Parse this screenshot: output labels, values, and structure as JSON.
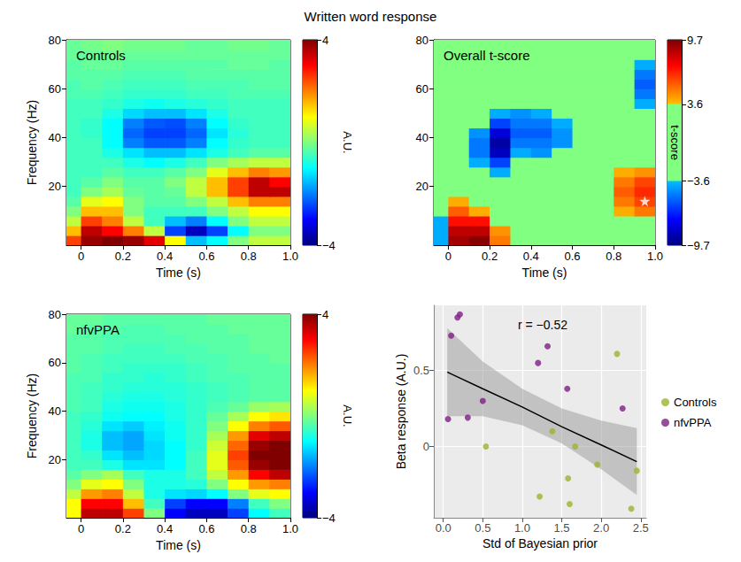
{
  "title": "Written word response",
  "chart_data": [
    {
      "type": "heatmap",
      "title": "Controls",
      "x_label": "Time (s)",
      "y_label": "Frequency (Hz)",
      "xlim": [
        -0.07,
        1.0
      ],
      "ylim": [
        -4,
        80
      ],
      "xticks": [
        0,
        0.2,
        0.4,
        0.6,
        0.8,
        {
          "value": 1,
          "label": "1.0"
        }
      ],
      "yticks": [
        20,
        40,
        60,
        80
      ],
      "x_edges": [
        -0.1,
        0,
        0.1,
        0.2,
        0.3,
        0.4,
        0.5,
        0.6,
        0.7,
        0.8,
        0.9,
        1.0
      ],
      "y_edges": [
        -4,
        0,
        4,
        8,
        12,
        16,
        20,
        24,
        28,
        32,
        36,
        40,
        44,
        48,
        52,
        56,
        60,
        64,
        68,
        72,
        76,
        80
      ],
      "cells": [
        [
          2.5,
          3.8,
          4,
          3.8,
          3.2,
          1,
          -1.5,
          -1,
          0,
          0.5,
          0.5
        ],
        [
          1.5,
          3.5,
          3,
          2,
          0.5,
          -2.5,
          -3.5,
          -2.5,
          -1,
          0,
          0
        ],
        [
          0.5,
          2.5,
          2,
          0.5,
          -0.5,
          -1.5,
          -2,
          -1,
          0,
          0.5,
          0.5
        ],
        [
          0,
          1.5,
          1.5,
          0,
          -0.5,
          -0.5,
          -0.5,
          0,
          0.5,
          1,
          1
        ],
        [
          -0.3,
          0.8,
          1,
          0,
          -0.3,
          -0.3,
          0,
          0.5,
          1.5,
          2,
          2
        ],
        [
          -0.5,
          0,
          0.3,
          -0.2,
          -0.3,
          -0.2,
          0.5,
          1.5,
          2.5,
          3.5,
          3.5
        ],
        [
          -0.5,
          -0.3,
          0,
          -0.3,
          -0.3,
          0,
          0.5,
          1.5,
          2.5,
          3.5,
          3
        ],
        [
          -0.5,
          -0.5,
          -0.3,
          -0.5,
          -0.5,
          -0.3,
          0,
          0.8,
          1.5,
          2,
          1.8
        ],
        [
          -0.5,
          -0.5,
          -0.5,
          -0.8,
          -1,
          -0.8,
          -0.5,
          0,
          0.3,
          0.5,
          0.5
        ],
        [
          -0.5,
          -0.5,
          -0.8,
          -1.2,
          -1.5,
          -1.5,
          -1.2,
          -0.8,
          -0.5,
          -0.3,
          -0.3
        ],
        [
          -0.5,
          -0.5,
          -1,
          -2,
          -2.3,
          -2.3,
          -2,
          -1,
          -0.6,
          -0.5,
          -0.5
        ],
        [
          -0.5,
          -0.6,
          -1,
          -2.2,
          -2.5,
          -2.5,
          -2.2,
          -1.2,
          -0.7,
          -0.5,
          -0.5
        ],
        [
          -0.5,
          -0.6,
          -1,
          -2,
          -2.3,
          -2.4,
          -2,
          -1,
          -0.6,
          -0.5,
          -0.5
        ],
        [
          -0.5,
          -0.5,
          -0.8,
          -1.3,
          -1.5,
          -1.5,
          -1.2,
          -0.8,
          -0.5,
          -0.5,
          -0.5
        ],
        [
          -0.5,
          -0.5,
          -0.6,
          -0.8,
          -0.9,
          -0.8,
          -0.7,
          -0.6,
          -0.5,
          -0.5,
          -0.5
        ],
        [
          -0.4,
          -0.4,
          -0.5,
          -0.6,
          -0.6,
          -0.6,
          -0.5,
          -0.5,
          -0.4,
          -0.4,
          -0.4
        ],
        [
          -0.4,
          -0.3,
          -0.4,
          -0.5,
          -0.5,
          -0.5,
          -0.4,
          -0.4,
          -0.4,
          -0.3,
          -0.3
        ],
        [
          -0.3,
          -0.3,
          -0.3,
          -0.4,
          -0.4,
          -0.4,
          -0.3,
          -0.3,
          -0.3,
          -0.3,
          -0.3
        ],
        [
          -0.3,
          -0.2,
          -0.2,
          -0.3,
          -0.3,
          -0.3,
          -0.3,
          -0.3,
          -0.2,
          -0.2,
          -0.3
        ],
        [
          -0.2,
          -0.2,
          -0.1,
          -0.2,
          -0.2,
          -0.2,
          -0.2,
          -0.2,
          -0.2,
          -0.2,
          -0.2
        ],
        [
          -0.2,
          -0.1,
          0,
          -0.1,
          -0.1,
          -0.1,
          -0.2,
          -0.2,
          -0.1,
          -0.1,
          -0.2
        ]
      ],
      "colorbar": {
        "label": "A.U.",
        "range": [
          -4,
          4
        ],
        "ticks": [
          {
            "value": -4,
            "label": "−4"
          },
          4
        ]
      }
    },
    {
      "type": "heatmap",
      "title": "Overall t-score",
      "x_label": "Time (s)",
      "xlim": [
        -0.07,
        1.0
      ],
      "ylim": [
        -4,
        80
      ],
      "xticks": [
        0,
        0.2,
        0.4,
        0.6,
        0.8,
        {
          "value": 1,
          "label": "1.0"
        }
      ],
      "yticks": [
        20,
        40,
        60,
        80
      ],
      "x_edges": [
        -0.1,
        0,
        0.1,
        0.2,
        0.3,
        0.4,
        0.5,
        0.6,
        0.7,
        0.8,
        0.9,
        1.0
      ],
      "y_edges": [
        -4,
        0,
        4,
        8,
        12,
        16,
        20,
        24,
        28,
        32,
        36,
        40,
        44,
        48,
        52,
        56,
        60,
        64,
        68,
        72,
        76,
        80
      ],
      "cells": [
        [
          -4,
          9,
          9.5,
          5,
          0,
          0,
          0,
          0,
          0,
          0,
          0
        ],
        [
          -4,
          8.5,
          8.5,
          4.5,
          0,
          0,
          0,
          0,
          0,
          0,
          0
        ],
        [
          -4,
          7,
          7,
          0,
          0,
          0,
          0,
          0,
          0,
          0,
          0
        ],
        [
          0,
          5.5,
          4,
          0,
          0,
          0,
          0,
          0,
          0,
          4,
          5
        ],
        [
          0,
          4,
          0,
          0,
          0,
          0,
          0,
          0,
          0,
          5,
          6
        ],
        [
          0,
          0,
          0,
          0,
          0,
          0,
          0,
          0,
          0,
          5.5,
          6.5
        ],
        [
          0,
          0,
          0,
          0,
          0,
          0,
          0,
          0,
          0,
          5,
          6
        ],
        [
          0,
          0,
          0,
          -4,
          0,
          0,
          0,
          0,
          0,
          4,
          4.5
        ],
        [
          0,
          0,
          -4,
          -6,
          0,
          0,
          0,
          0,
          0,
          0,
          0
        ],
        [
          0,
          0,
          -5,
          -8.5,
          -4,
          -4.5,
          0,
          0,
          0,
          0,
          0
        ],
        [
          0,
          0,
          -5,
          -9,
          -5,
          -5,
          -4.5,
          0,
          0,
          0,
          0
        ],
        [
          0,
          0,
          -4.5,
          -8,
          -5.5,
          -5.5,
          -4.5,
          0,
          0,
          0,
          0
        ],
        [
          0,
          0,
          0,
          -6,
          -5,
          -5,
          -4,
          0,
          0,
          0,
          0
        ],
        [
          0,
          0,
          0,
          -4,
          -4.5,
          -4,
          0,
          0,
          0,
          0,
          0
        ],
        [
          0,
          0,
          0,
          0,
          0,
          0,
          0,
          0,
          0,
          0,
          -4
        ],
        [
          0,
          0,
          0,
          0,
          0,
          0,
          0,
          0,
          0,
          0,
          -5
        ],
        [
          0,
          0,
          0,
          0,
          0,
          0,
          0,
          0,
          0,
          0,
          -5.5
        ],
        [
          0,
          0,
          0,
          0,
          0,
          0,
          0,
          0,
          0,
          0,
          -5
        ],
        [
          0,
          0,
          0,
          0,
          0,
          0,
          0,
          0,
          0,
          0,
          -4
        ],
        [
          0,
          0,
          0,
          0,
          0,
          0,
          0,
          0,
          0,
          0,
          0
        ],
        [
          0,
          0,
          0,
          0,
          0,
          0,
          0,
          0,
          0,
          0,
          0
        ]
      ],
      "markers": [
        {
          "x": 0.95,
          "y": 14,
          "marker": "star",
          "color": "#ffffff"
        }
      ],
      "colorbar": {
        "label": "t-score",
        "range": [
          -9.7,
          9.7
        ],
        "threshold": 3.6,
        "ticks": [
          {
            "value": -9.7,
            "label": "−9.7"
          },
          {
            "value": -3.6,
            "label": "−3.6"
          },
          3.6,
          9.7
        ]
      }
    },
    {
      "type": "heatmap",
      "title": "nfvPPA",
      "x_label": "Time (s)",
      "y_label": "Frequency (Hz)",
      "xlim": [
        -0.07,
        1.0
      ],
      "ylim": [
        -4,
        80
      ],
      "xticks": [
        0,
        0.2,
        0.4,
        0.6,
        0.8,
        {
          "value": 1,
          "label": "1.0"
        }
      ],
      "yticks": [
        20,
        40,
        60,
        80
      ],
      "x_edges": [
        -0.1,
        0,
        0.1,
        0.2,
        0.3,
        0.4,
        0.5,
        0.6,
        0.7,
        0.8,
        0.9,
        1.0
      ],
      "y_edges": [
        -4,
        0,
        4,
        8,
        12,
        16,
        20,
        24,
        28,
        32,
        36,
        40,
        44,
        48,
        52,
        56,
        60,
        64,
        68,
        72,
        76,
        80
      ],
      "cells": [
        [
          1,
          3.5,
          3.5,
          2.5,
          0,
          -3,
          -3.5,
          -3.5,
          -2.5,
          -1,
          -0.5
        ],
        [
          1,
          3,
          3,
          1.5,
          -0.5,
          -2.5,
          -3,
          -3,
          -2,
          -0.5,
          0
        ],
        [
          0.5,
          1.8,
          2,
          0.5,
          -0.8,
          -1.2,
          -1.3,
          -1,
          0,
          0.8,
          1
        ],
        [
          0,
          0.8,
          1,
          0,
          -0.8,
          -0.8,
          -0.7,
          0,
          1,
          1.8,
          2
        ],
        [
          -0.3,
          0,
          0.3,
          -0.5,
          -0.8,
          -0.8,
          -0.5,
          0.5,
          1.8,
          3,
          3.5
        ],
        [
          -0.5,
          -0.5,
          -0.8,
          -1.2,
          -1.2,
          -1,
          -0.5,
          0.8,
          2.3,
          3.8,
          4
        ],
        [
          -0.5,
          -0.6,
          -1.2,
          -1.5,
          -1.3,
          -1,
          -0.5,
          0.8,
          2.5,
          4,
          4
        ],
        [
          -0.5,
          -0.8,
          -1.5,
          -1.7,
          -1.3,
          -1,
          -0.6,
          0.6,
          2.2,
          3.8,
          4
        ],
        [
          -0.5,
          -0.8,
          -1.5,
          -1.7,
          -1.2,
          -0.9,
          -0.6,
          0.3,
          1.8,
          3.2,
          3.5
        ],
        [
          -0.5,
          -0.7,
          -1.2,
          -1.4,
          -1.1,
          -0.9,
          -0.6,
          0,
          1,
          2,
          2.3
        ],
        [
          -0.5,
          -0.6,
          -0.9,
          -1,
          -1,
          -0.8,
          -0.6,
          -0.2,
          0.3,
          1,
          1.2
        ],
        [
          -0.4,
          -0.5,
          -0.8,
          -0.9,
          -0.9,
          -0.8,
          -0.6,
          -0.4,
          -0.2,
          0.2,
          0.3
        ],
        [
          -0.4,
          -0.5,
          -0.7,
          -0.8,
          -0.8,
          -0.7,
          -0.6,
          -0.5,
          -0.4,
          -0.3,
          -0.3
        ],
        [
          -0.4,
          -0.5,
          -0.6,
          -0.7,
          -0.7,
          -0.7,
          -0.6,
          -0.5,
          -0.4,
          -0.3,
          -0.3
        ],
        [
          -0.4,
          -0.4,
          -0.6,
          -0.6,
          -0.7,
          -0.6,
          -0.5,
          -0.4,
          -0.4,
          -0.3,
          -0.3
        ],
        [
          -0.3,
          -0.4,
          -0.5,
          -0.6,
          -0.6,
          -0.6,
          -0.5,
          -0.4,
          -0.3,
          -0.3,
          -0.3
        ],
        [
          -0.3,
          -0.4,
          -0.5,
          -0.5,
          -0.5,
          -0.5,
          -0.4,
          -0.4,
          -0.3,
          -0.3,
          -0.2
        ],
        [
          -0.3,
          -0.3,
          -0.4,
          -0.5,
          -0.5,
          -0.4,
          -0.4,
          -0.3,
          -0.3,
          -0.2,
          -0.2
        ],
        [
          -0.3,
          -0.3,
          -0.4,
          -0.4,
          -0.4,
          -0.4,
          -0.3,
          -0.3,
          -0.3,
          -0.2,
          -0.2
        ],
        [
          -0.2,
          -0.3,
          -0.3,
          -0.4,
          -0.4,
          -0.3,
          -0.3,
          -0.3,
          -0.2,
          -0.2,
          -0.2
        ],
        [
          -0.2,
          -0.2,
          -0.3,
          -0.3,
          -0.3,
          -0.3,
          -0.3,
          -0.2,
          -0.2,
          -0.2,
          -0.2
        ]
      ],
      "colorbar": {
        "label": "A.U.",
        "range": [
          -4,
          4
        ],
        "ticks": [
          {
            "value": -4,
            "label": "−4"
          },
          4
        ]
      }
    },
    {
      "type": "scatter",
      "x_label": "Std of Bayesian prior",
      "y_label": "Beta response (A.U.)",
      "xlim": [
        -0.12,
        2.57
      ],
      "ylim": [
        -0.47,
        0.93
      ],
      "xticks": [
        {
          "value": 0,
          "label": "0.0"
        },
        0.5,
        {
          "value": 1,
          "label": "1.0"
        },
        1.5,
        {
          "value": 2,
          "label": "2.0"
        },
        2.5
      ],
      "yticks": [
        0,
        0.5
      ],
      "grid": true,
      "legend": "right",
      "series": [
        {
          "name": "Controls",
          "color": "#9ab52f",
          "x": [
            0.54,
            1.22,
            1.38,
            1.58,
            1.6,
            1.67,
            1.95,
            2.2,
            2.38,
            2.45
          ],
          "values": [
            0.0,
            -0.33,
            0.1,
            -0.21,
            -0.38,
            0.0,
            -0.12,
            0.61,
            -0.41,
            -0.16
          ]
        },
        {
          "name": "nfvPPA",
          "color": "#7f1f86",
          "x": [
            0.06,
            0.1,
            0.18,
            0.21,
            0.31,
            0.5,
            1.2,
            1.32,
            1.57,
            2.27
          ],
          "values": [
            0.18,
            0.73,
            0.85,
            0.87,
            0.19,
            0.3,
            0.55,
            0.66,
            0.38,
            0.25
          ]
        }
      ],
      "fit": {
        "color": "#000000",
        "x": [
          0.05,
          0.5,
          1,
          1.5,
          2,
          2.45
        ],
        "values": [
          0.49,
          0.38,
          0.26,
          0.13,
          0.01,
          -0.1
        ],
        "lower": [
          0.2,
          0.2,
          0.14,
          0.02,
          -0.15,
          -0.32
        ],
        "upper": [
          0.78,
          0.56,
          0.38,
          0.25,
          0.17,
          0.12
        ]
      },
      "annotations": [
        "r = −0.52"
      ]
    }
  ]
}
